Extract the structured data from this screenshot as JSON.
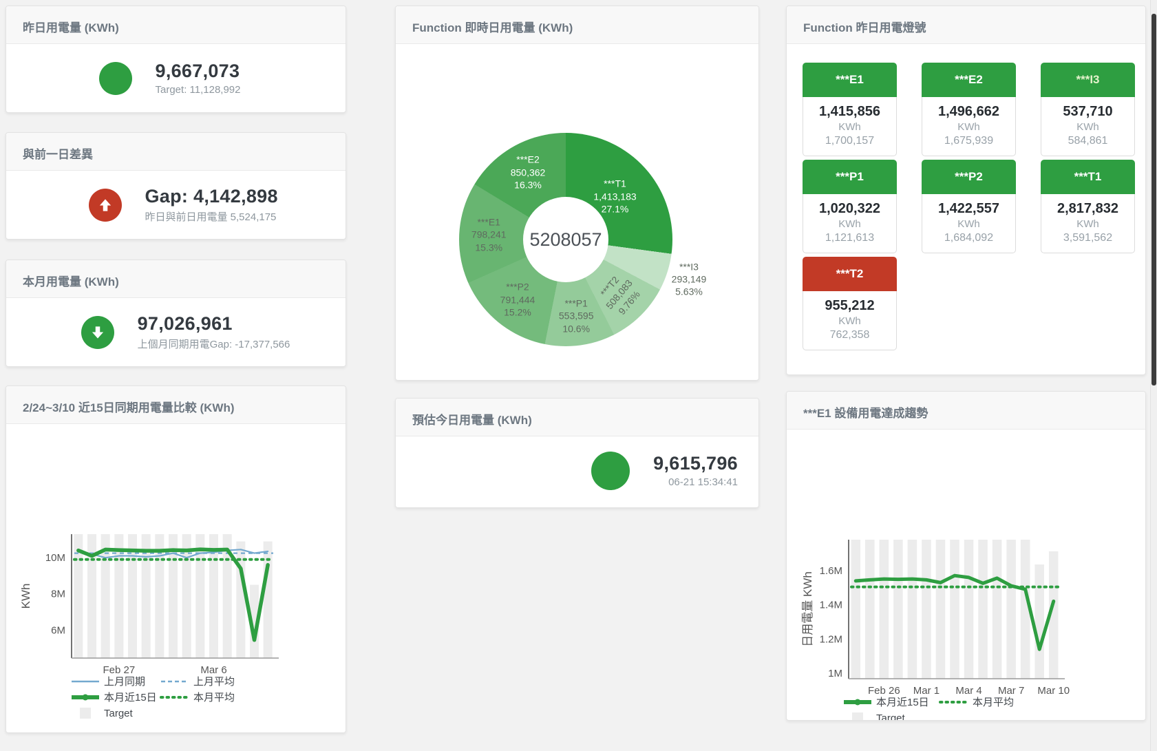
{
  "colors": {
    "green": "#2e9e41",
    "red": "#c23a26",
    "blue": "#74a9cf",
    "bar": "#ececec"
  },
  "cards": {
    "yesterday": {
      "title": "昨日用電量 (KWh)",
      "value": "9,667,073",
      "sub": "Target: 11,128,992"
    },
    "diff_prev_day": {
      "title": "與前一日差異",
      "value": "Gap: 4,142,898",
      "sub": "昨日與前日用電量 5,524,175"
    },
    "month": {
      "title": "本月用電量 (KWh)",
      "value": "97,026,961",
      "sub": "上個月同期用電Gap: -17,377,566"
    },
    "compare15": {
      "title": "2/24~3/10 近15日同期用電量比較 (KWh)"
    },
    "realtime": {
      "title": "Function 即時日用電量 (KWh)"
    },
    "estimate_today": {
      "title": "預估今日用電量 (KWh)",
      "value": "9,615,796",
      "sub": "06-21 15:34:41"
    },
    "lights": {
      "title": "Function 昨日用電燈號"
    },
    "e1_trend": {
      "title": "***E1 設備用電達成趨勢"
    }
  },
  "lights_tiles": [
    {
      "label": "***E1",
      "value": "1,415,856",
      "unit": "KWh",
      "target": "1,700,157",
      "status": "green",
      "label_color": "#ffffff"
    },
    {
      "label": "***E2",
      "value": "1,496,662",
      "unit": "KWh",
      "target": "1,675,939",
      "status": "green",
      "label_color": "#ffffff"
    },
    {
      "label": "***I3",
      "value": "537,710",
      "unit": "KWh",
      "target": "584,861",
      "status": "green",
      "label_color": "#e4f2cc"
    },
    {
      "label": "***P1",
      "value": "1,020,322",
      "unit": "KWh",
      "target": "1,121,613",
      "status": "green",
      "label_color": "#ffffff"
    },
    {
      "label": "***P2",
      "value": "1,422,557",
      "unit": "KWh",
      "target": "1,684,092",
      "status": "green",
      "label_color": "#ffffff"
    },
    {
      "label": "***T1",
      "value": "2,817,832",
      "unit": "KWh",
      "target": "3,591,562",
      "status": "green",
      "label_color": "#ffffff"
    },
    {
      "label": "***T2",
      "value": "955,212",
      "unit": "KWh",
      "target": "762,358",
      "status": "red",
      "label_color": "#ffffff"
    }
  ],
  "chart_data": [
    {
      "type": "pie",
      "title": "Function 即時日用電量 (KWh)",
      "center_label": "5208057",
      "slices": [
        {
          "name": "***T1",
          "value": 1413183,
          "display": "1,413,183",
          "pct": "27.1%",
          "color": "#2e9e41",
          "label": "light",
          "label_r": 95
        },
        {
          "name": "***I3",
          "value": 293149,
          "display": "293,149",
          "pct": "5.63%",
          "color": "#c2e2c6",
          "label": "dark",
          "outside": true
        },
        {
          "name": "***T2",
          "value": 508083,
          "display": "508,083",
          "pct": "9.76%",
          "color": "#a4d3a9",
          "label": "dark",
          "rotate": -50
        },
        {
          "name": "***P1",
          "value": 553595,
          "display": "553,595",
          "pct": "10.6%",
          "color": "#94cb9a",
          "label": "dark"
        },
        {
          "name": "***P2",
          "value": 791444,
          "display": "791,444",
          "pct": "15.2%",
          "color": "#74bb7c",
          "label": "dark"
        },
        {
          "name": "***E1",
          "value": 798241,
          "display": "798,241",
          "pct": "15.3%",
          "color": "#68b571",
          "label": "dark"
        },
        {
          "name": "***E2",
          "value": 850362,
          "display": "850,362",
          "pct": "16.3%",
          "color": "#4ba857",
          "label": "light"
        }
      ]
    },
    {
      "type": "line",
      "title": "2/24~3/10 近15日同期用電量比較 (KWh)",
      "ylabel": "KWh",
      "ylim": [
        4450000,
        11300000
      ],
      "y_ticks": [
        {
          "v": 6000000,
          "label": "6M"
        },
        {
          "v": 8000000,
          "label": "8M"
        },
        {
          "v": 10000000,
          "label": "10M"
        }
      ],
      "x_tick_labels": [
        {
          "index": 3,
          "label": "Feb 27"
        },
        {
          "index": 10,
          "label": "Mar 6"
        }
      ],
      "legend_position": "bottom",
      "target_bars": [
        11300000,
        11300000,
        11300000,
        11300000,
        11300000,
        11300000,
        11300000,
        11300000,
        11300000,
        11300000,
        11300000,
        11300000,
        10900000,
        8500000,
        10900000
      ],
      "series": [
        {
          "name": "上月同期",
          "style": "line",
          "color": "#74a9cf",
          "width": 2.2,
          "values": [
            10350000,
            10200000,
            10000000,
            10100000,
            10100000,
            10050000,
            10100000,
            10250000,
            10000000,
            10250000,
            10300000,
            10400000,
            10450000,
            10250000,
            10350000
          ]
        },
        {
          "name": "上月平均",
          "style": "dash",
          "color": "#74a9cf",
          "width": 2.2,
          "avg": 10250000
        },
        {
          "name": "本月近15日",
          "style": "thick",
          "color": "#2e9e41",
          "width": 5.5,
          "values": [
            10400000,
            10100000,
            10450000,
            10420000,
            10400000,
            10380000,
            10380000,
            10420000,
            10400000,
            10460000,
            10430000,
            10450000,
            9400000,
            5450000,
            9600000
          ]
        },
        {
          "name": "本月平均",
          "style": "dots",
          "color": "#2e9e41",
          "width": 4,
          "avg": 9900000
        },
        {
          "name": "Target",
          "style": "square",
          "color": "#ececec"
        }
      ]
    },
    {
      "type": "line",
      "title": "***E1 設備用電達成趨勢",
      "ylabel": "日用電量 KWh",
      "ylim": [
        968000,
        1781000
      ],
      "y_ticks": [
        {
          "v": 1000000,
          "label": "1M"
        },
        {
          "v": 1200000,
          "label": "1.2M"
        },
        {
          "v": 1400000,
          "label": "1.4M"
        },
        {
          "v": 1600000,
          "label": "1.6M"
        }
      ],
      "x_tick_labels": [
        {
          "index": 2,
          "label": "Feb 26"
        },
        {
          "index": 5,
          "label": "Mar 1"
        },
        {
          "index": 8,
          "label": "Mar 4"
        },
        {
          "index": 11,
          "label": "Mar 7"
        },
        {
          "index": 14,
          "label": "Mar 10"
        }
      ],
      "legend_position": "bottom",
      "target_bars": [
        1781000,
        1781000,
        1781000,
        1781000,
        1781000,
        1781000,
        1781000,
        1781000,
        1781000,
        1781000,
        1781000,
        1781000,
        1781000,
        1636000,
        1713000
      ],
      "series": [
        {
          "name": "本月近15日",
          "style": "thick",
          "color": "#2e9e41",
          "width": 5,
          "values": [
            1540000,
            1546000,
            1551000,
            1549000,
            1551000,
            1546000,
            1530000,
            1571000,
            1560000,
            1526000,
            1556000,
            1511000,
            1491000,
            1140000,
            1421000
          ]
        },
        {
          "name": "本月平均",
          "style": "dots",
          "color": "#2e9e41",
          "width": 4,
          "avg": 1505000
        },
        {
          "name": "Target",
          "style": "square",
          "color": "#ececec"
        }
      ]
    }
  ]
}
